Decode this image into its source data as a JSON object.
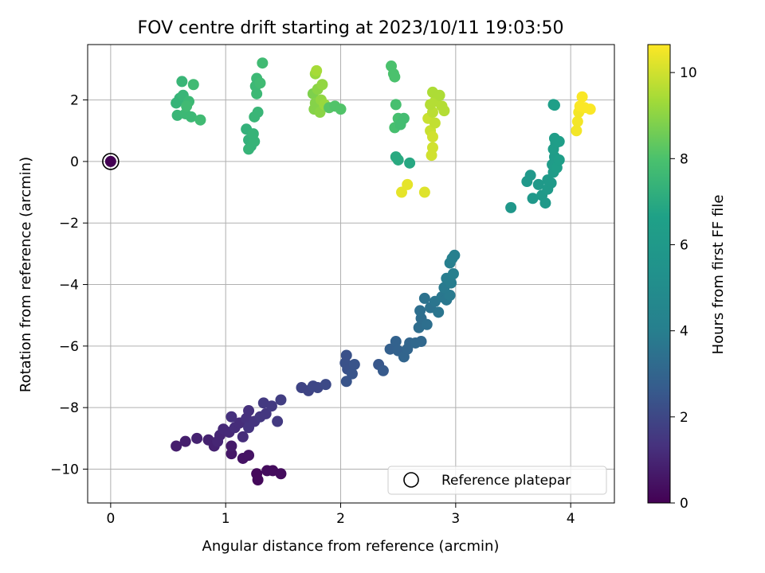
{
  "chart_data": {
    "type": "scatter",
    "title": "FOV centre drift starting at 2023/10/11 19:03:50",
    "xlabel": "Angular distance from reference (arcmin)",
    "ylabel": "Rotation from reference (arcmin)",
    "xlim": [
      -0.2,
      4.38
    ],
    "ylim": [
      -11.1,
      3.8
    ],
    "xticks": [
      0,
      1,
      2,
      3,
      4
    ],
    "xtick_labels": [
      "0",
      "1",
      "2",
      "3",
      "4"
    ],
    "yticks": [
      -10,
      -8,
      -6,
      -4,
      -2,
      0,
      2
    ],
    "ytick_labels": [
      "−10",
      "−8",
      "−6",
      "−4",
      "−2",
      "0",
      "2"
    ],
    "grid": true,
    "colormap": "viridis",
    "colorbar": {
      "label": "Hours from first FF file",
      "range": [
        0,
        10.65
      ],
      "ticks": [
        0,
        2,
        4,
        6,
        8,
        10
      ],
      "tick_labels": [
        "0",
        "2",
        "4",
        "6",
        "8",
        "10"
      ]
    },
    "legend": {
      "placement": "lower-right",
      "entries": [
        "Reference platepar"
      ]
    },
    "reference_point": {
      "x": 0,
      "y": 0,
      "label": "Reference platepar"
    },
    "points": [
      {
        "x": 1.27,
        "y": -10.15,
        "h": 0.2
      },
      {
        "x": 1.28,
        "y": -10.35,
        "h": 0.2
      },
      {
        "x": 1.36,
        "y": -10.05,
        "h": 0.3
      },
      {
        "x": 1.41,
        "y": -10.05,
        "h": 0.3
      },
      {
        "x": 1.48,
        "y": -10.15,
        "h": 0.3
      },
      {
        "x": 1.15,
        "y": -9.65,
        "h": 0.5
      },
      {
        "x": 1.2,
        "y": -9.55,
        "h": 0.5
      },
      {
        "x": 1.05,
        "y": -9.5,
        "h": 0.6
      },
      {
        "x": 1.05,
        "y": -9.25,
        "h": 0.7
      },
      {
        "x": 0.57,
        "y": -9.25,
        "h": 0.8
      },
      {
        "x": 0.65,
        "y": -9.1,
        "h": 0.8
      },
      {
        "x": 0.75,
        "y": -9.0,
        "h": 0.9
      },
      {
        "x": 0.85,
        "y": -9.05,
        "h": 0.9
      },
      {
        "x": 0.9,
        "y": -9.25,
        "h": 0.9
      },
      {
        "x": 0.93,
        "y": -9.1,
        "h": 1.0
      },
      {
        "x": 0.95,
        "y": -8.9,
        "h": 1.0
      },
      {
        "x": 0.98,
        "y": -8.7,
        "h": 1.1
      },
      {
        "x": 1.03,
        "y": -8.8,
        "h": 1.1
      },
      {
        "x": 1.08,
        "y": -8.65,
        "h": 1.2
      },
      {
        "x": 1.15,
        "y": -8.95,
        "h": 1.2
      },
      {
        "x": 1.12,
        "y": -8.5,
        "h": 1.2
      },
      {
        "x": 1.05,
        "y": -8.3,
        "h": 1.3
      },
      {
        "x": 1.18,
        "y": -8.35,
        "h": 1.3
      },
      {
        "x": 1.2,
        "y": -8.1,
        "h": 1.3
      },
      {
        "x": 1.2,
        "y": -8.65,
        "h": 1.4
      },
      {
        "x": 1.25,
        "y": -8.45,
        "h": 1.4
      },
      {
        "x": 1.3,
        "y": -8.3,
        "h": 1.5
      },
      {
        "x": 1.35,
        "y": -8.2,
        "h": 1.5
      },
      {
        "x": 1.33,
        "y": -7.85,
        "h": 1.6
      },
      {
        "x": 1.4,
        "y": -7.95,
        "h": 1.6
      },
      {
        "x": 1.45,
        "y": -8.45,
        "h": 1.6
      },
      {
        "x": 1.48,
        "y": -7.75,
        "h": 1.7
      },
      {
        "x": 1.66,
        "y": -7.35,
        "h": 1.9
      },
      {
        "x": 1.72,
        "y": -7.45,
        "h": 1.9
      },
      {
        "x": 1.76,
        "y": -7.3,
        "h": 2.0
      },
      {
        "x": 1.8,
        "y": -7.35,
        "h": 2.0
      },
      {
        "x": 1.87,
        "y": -7.25,
        "h": 2.1
      },
      {
        "x": 2.05,
        "y": -6.3,
        "h": 2.3
      },
      {
        "x": 2.04,
        "y": -6.55,
        "h": 2.3
      },
      {
        "x": 2.06,
        "y": -6.75,
        "h": 2.3
      },
      {
        "x": 2.1,
        "y": -6.9,
        "h": 2.4
      },
      {
        "x": 2.05,
        "y": -7.15,
        "h": 2.4
      },
      {
        "x": 2.12,
        "y": -6.6,
        "h": 2.4
      },
      {
        "x": 2.33,
        "y": -6.6,
        "h": 2.5
      },
      {
        "x": 2.37,
        "y": -6.8,
        "h": 2.6
      },
      {
        "x": 2.43,
        "y": -6.1,
        "h": 2.8
      },
      {
        "x": 2.48,
        "y": -5.85,
        "h": 2.9
      },
      {
        "x": 2.5,
        "y": -6.15,
        "h": 2.9
      },
      {
        "x": 2.55,
        "y": -6.35,
        "h": 3.0
      },
      {
        "x": 2.6,
        "y": -5.9,
        "h": 3.0
      },
      {
        "x": 2.58,
        "y": -6.1,
        "h": 3.0
      },
      {
        "x": 2.65,
        "y": -5.9,
        "h": 3.1
      },
      {
        "x": 2.7,
        "y": -5.85,
        "h": 3.1
      },
      {
        "x": 2.68,
        "y": -5.4,
        "h": 3.3
      },
      {
        "x": 2.7,
        "y": -5.1,
        "h": 3.3
      },
      {
        "x": 2.69,
        "y": -4.85,
        "h": 3.4
      },
      {
        "x": 2.75,
        "y": -5.3,
        "h": 3.4
      },
      {
        "x": 2.73,
        "y": -4.45,
        "h": 3.5
      },
      {
        "x": 2.78,
        "y": -4.75,
        "h": 3.5
      },
      {
        "x": 2.82,
        "y": -4.55,
        "h": 3.6
      },
      {
        "x": 2.85,
        "y": -4.9,
        "h": 3.6
      },
      {
        "x": 2.88,
        "y": -4.4,
        "h": 3.7
      },
      {
        "x": 2.92,
        "y": -4.5,
        "h": 3.7
      },
      {
        "x": 2.95,
        "y": -4.35,
        "h": 3.8
      },
      {
        "x": 2.9,
        "y": -4.1,
        "h": 3.8
      },
      {
        "x": 2.92,
        "y": -3.8,
        "h": 3.9
      },
      {
        "x": 2.96,
        "y": -3.95,
        "h": 3.9
      },
      {
        "x": 2.98,
        "y": -3.65,
        "h": 4.0
      },
      {
        "x": 2.95,
        "y": -3.3,
        "h": 4.0
      },
      {
        "x": 2.97,
        "y": -3.15,
        "h": 4.1
      },
      {
        "x": 2.99,
        "y": -3.05,
        "h": 4.1
      },
      {
        "x": 3.48,
        "y": -1.5,
        "h": 5.8
      },
      {
        "x": 3.62,
        "y": -0.65,
        "h": 5.9
      },
      {
        "x": 3.65,
        "y": -0.45,
        "h": 5.9
      },
      {
        "x": 3.67,
        "y": -1.2,
        "h": 5.9
      },
      {
        "x": 3.72,
        "y": -0.75,
        "h": 6.0
      },
      {
        "x": 3.75,
        "y": -1.1,
        "h": 6.0
      },
      {
        "x": 3.78,
        "y": -1.35,
        "h": 6.0
      },
      {
        "x": 3.8,
        "y": -0.9,
        "h": 6.1
      },
      {
        "x": 3.8,
        "y": -0.6,
        "h": 6.1
      },
      {
        "x": 3.83,
        "y": -0.7,
        "h": 6.1
      },
      {
        "x": 3.85,
        "y": -0.35,
        "h": 6.2
      },
      {
        "x": 3.84,
        "y": -0.1,
        "h": 6.2
      },
      {
        "x": 3.86,
        "y": 0.15,
        "h": 6.2
      },
      {
        "x": 3.85,
        "y": 0.4,
        "h": 6.3
      },
      {
        "x": 3.87,
        "y": 0.6,
        "h": 6.3
      },
      {
        "x": 3.86,
        "y": 0.75,
        "h": 6.3
      },
      {
        "x": 3.9,
        "y": 0.65,
        "h": 6.4
      },
      {
        "x": 3.88,
        "y": -0.2,
        "h": 6.4
      },
      {
        "x": 3.9,
        "y": 0.05,
        "h": 6.4
      },
      {
        "x": 3.85,
        "y": 1.85,
        "h": 6.5
      },
      {
        "x": 3.86,
        "y": 1.83,
        "h": 6.5
      },
      {
        "x": 0.57,
        "y": 1.9,
        "h": 7.4
      },
      {
        "x": 0.6,
        "y": 2.05,
        "h": 7.4
      },
      {
        "x": 0.62,
        "y": 2.6,
        "h": 7.5
      },
      {
        "x": 0.63,
        "y": 2.15,
        "h": 7.5
      },
      {
        "x": 0.58,
        "y": 1.5,
        "h": 7.5
      },
      {
        "x": 0.65,
        "y": 1.55,
        "h": 7.6
      },
      {
        "x": 0.68,
        "y": 1.95,
        "h": 7.6
      },
      {
        "x": 0.7,
        "y": 1.45,
        "h": 7.6
      },
      {
        "x": 0.72,
        "y": 2.5,
        "h": 7.7
      },
      {
        "x": 0.78,
        "y": 1.35,
        "h": 7.7
      },
      {
        "x": 0.66,
        "y": 1.8,
        "h": 7.7
      },
      {
        "x": 1.18,
        "y": 1.05,
        "h": 7.3
      },
      {
        "x": 1.2,
        "y": 0.7,
        "h": 7.3
      },
      {
        "x": 1.22,
        "y": 0.5,
        "h": 7.3
      },
      {
        "x": 1.25,
        "y": 0.65,
        "h": 7.4
      },
      {
        "x": 1.24,
        "y": 0.9,
        "h": 7.4
      },
      {
        "x": 1.2,
        "y": 0.4,
        "h": 7.4
      },
      {
        "x": 1.25,
        "y": 1.45,
        "h": 7.5
      },
      {
        "x": 1.28,
        "y": 1.6,
        "h": 7.5
      },
      {
        "x": 1.27,
        "y": 2.2,
        "h": 7.6
      },
      {
        "x": 1.26,
        "y": 2.45,
        "h": 7.6
      },
      {
        "x": 1.27,
        "y": 2.7,
        "h": 7.6
      },
      {
        "x": 1.3,
        "y": 2.55,
        "h": 7.7
      },
      {
        "x": 1.32,
        "y": 3.2,
        "h": 7.7
      },
      {
        "x": 1.76,
        "y": 2.2,
        "h": 8.8
      },
      {
        "x": 1.77,
        "y": 1.7,
        "h": 8.9
      },
      {
        "x": 1.78,
        "y": 1.9,
        "h": 8.9
      },
      {
        "x": 1.8,
        "y": 2.35,
        "h": 9.0
      },
      {
        "x": 1.82,
        "y": 1.6,
        "h": 9.0
      },
      {
        "x": 1.83,
        "y": 2.0,
        "h": 9.1
      },
      {
        "x": 1.84,
        "y": 2.5,
        "h": 9.1
      },
      {
        "x": 1.86,
        "y": 1.85,
        "h": 9.2
      },
      {
        "x": 1.78,
        "y": 2.85,
        "h": 9.2
      },
      {
        "x": 1.79,
        "y": 2.95,
        "h": 9.4
      },
      {
        "x": 1.9,
        "y": 1.75,
        "h": 8.2
      },
      {
        "x": 1.95,
        "y": 1.8,
        "h": 8.1
      },
      {
        "x": 2.0,
        "y": 1.7,
        "h": 8.1
      },
      {
        "x": 2.44,
        "y": 3.1,
        "h": 8.0
      },
      {
        "x": 2.46,
        "y": 2.85,
        "h": 8.0
      },
      {
        "x": 2.47,
        "y": 2.75,
        "h": 8.0
      },
      {
        "x": 2.48,
        "y": 1.85,
        "h": 7.9
      },
      {
        "x": 2.5,
        "y": 1.4,
        "h": 7.9
      },
      {
        "x": 2.47,
        "y": 1.1,
        "h": 7.9
      },
      {
        "x": 2.52,
        "y": 1.2,
        "h": 7.8
      },
      {
        "x": 2.55,
        "y": 1.4,
        "h": 7.8
      },
      {
        "x": 2.48,
        "y": 0.15,
        "h": 7.0
      },
      {
        "x": 2.5,
        "y": 0.05,
        "h": 7.0
      },
      {
        "x": 2.6,
        "y": -0.05,
        "h": 6.9
      },
      {
        "x": 2.53,
        "y": -1.0,
        "h": 10.3
      },
      {
        "x": 2.58,
        "y": -0.75,
        "h": 10.3
      },
      {
        "x": 2.73,
        "y": -1.0,
        "h": 10.2
      },
      {
        "x": 2.76,
        "y": 1.4,
        "h": 9.9
      },
      {
        "x": 2.78,
        "y": 1.0,
        "h": 9.9
      },
      {
        "x": 2.8,
        "y": 0.8,
        "h": 10.0
      },
      {
        "x": 2.8,
        "y": 0.45,
        "h": 10.0
      },
      {
        "x": 2.79,
        "y": 0.2,
        "h": 10.0
      },
      {
        "x": 2.82,
        "y": 1.25,
        "h": 9.8
      },
      {
        "x": 2.8,
        "y": 1.6,
        "h": 9.7
      },
      {
        "x": 2.78,
        "y": 1.85,
        "h": 9.6
      },
      {
        "x": 2.82,
        "y": 1.95,
        "h": 9.6
      },
      {
        "x": 2.8,
        "y": 2.25,
        "h": 9.5
      },
      {
        "x": 2.86,
        "y": 2.15,
        "h": 9.5
      },
      {
        "x": 2.88,
        "y": 1.8,
        "h": 9.6
      },
      {
        "x": 2.9,
        "y": 1.65,
        "h": 9.6
      },
      {
        "x": 4.05,
        "y": 1.0,
        "h": 10.5
      },
      {
        "x": 4.06,
        "y": 1.3,
        "h": 10.5
      },
      {
        "x": 4.07,
        "y": 1.6,
        "h": 10.5
      },
      {
        "x": 4.08,
        "y": 1.8,
        "h": 10.6
      },
      {
        "x": 4.1,
        "y": 2.1,
        "h": 10.6
      },
      {
        "x": 4.12,
        "y": 1.75,
        "h": 10.6
      },
      {
        "x": 4.17,
        "y": 1.7,
        "h": 10.6
      }
    ]
  }
}
